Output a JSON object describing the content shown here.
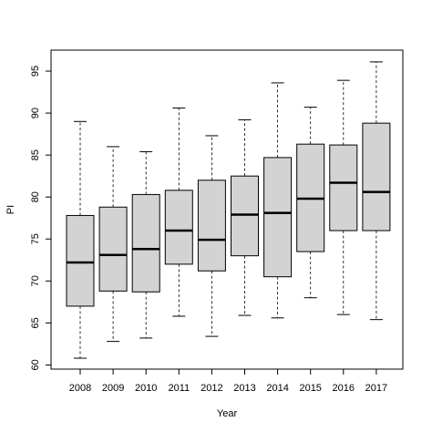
{
  "chart_data": {
    "type": "boxplot",
    "xlabel": "Year",
    "ylabel": "PI",
    "ylim": [
      59.5,
      97.5
    ],
    "yticks": [
      60,
      65,
      70,
      75,
      80,
      85,
      90,
      95
    ],
    "categories": [
      "2008",
      "2009",
      "2010",
      "2011",
      "2012",
      "2013",
      "2014",
      "2015",
      "2016",
      "2017"
    ],
    "boxes": [
      {
        "min": 60.8,
        "q1": 67.0,
        "median": 72.2,
        "q3": 77.8,
        "max": 89.0
      },
      {
        "min": 62.8,
        "q1": 68.8,
        "median": 73.1,
        "q3": 78.8,
        "max": 86.0
      },
      {
        "min": 63.2,
        "q1": 68.7,
        "median": 73.8,
        "q3": 80.3,
        "max": 85.4
      },
      {
        "min": 65.8,
        "q1": 72.0,
        "median": 76.0,
        "q3": 80.8,
        "max": 90.6
      },
      {
        "min": 63.4,
        "q1": 71.2,
        "median": 74.9,
        "q3": 82.0,
        "max": 87.3
      },
      {
        "min": 65.9,
        "q1": 73.0,
        "median": 77.9,
        "q3": 82.5,
        "max": 89.2
      },
      {
        "min": 65.6,
        "q1": 70.5,
        "median": 78.1,
        "q3": 84.7,
        "max": 93.6
      },
      {
        "min": 68.0,
        "q1": 73.5,
        "median": 79.8,
        "q3": 86.3,
        "max": 90.7
      },
      {
        "min": 66.0,
        "q1": 76.0,
        "median": 81.7,
        "q3": 86.2,
        "max": 93.9
      },
      {
        "min": 65.4,
        "q1": 76.0,
        "median": 80.6,
        "q3": 88.8,
        "max": 96.1
      }
    ],
    "box_fill": "#d3d3d3",
    "grid": false,
    "legend": "none"
  }
}
